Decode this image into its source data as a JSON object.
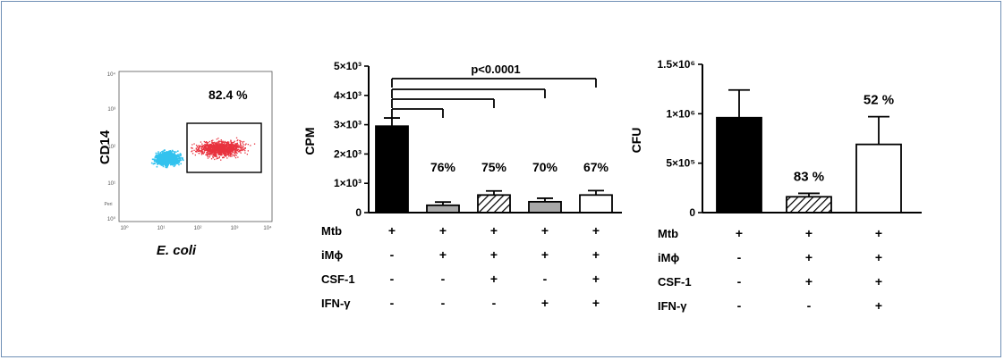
{
  "chart_data": [
    {
      "type": "scatter",
      "xlabel": "E. coli",
      "ylabel": "CD14",
      "xscale": "log",
      "yscale": "log",
      "xlim": [
        1,
        10000
      ],
      "ylim": [
        1,
        10000
      ],
      "x_tick_labels": [
        "10⁰",
        "10¹",
        "10²",
        "10³",
        "10⁴"
      ],
      "y_tick_labels": [
        "10⁰",
        "10¹",
        "10²",
        "10³",
        "10⁴"
      ],
      "side_label": "Peri",
      "gate_label": "82.4 %",
      "gate_value": 82.4,
      "series": [
        {
          "color": "#e8333f"
        },
        {
          "color": "#33c2ee"
        }
      ]
    },
    {
      "type": "bar",
      "ylabel": "CPM",
      "ylim": [
        0,
        5000
      ],
      "y_tick_labels": [
        "0",
        "1×10³",
        "2×10³",
        "3×10³",
        "4×10³",
        "5×10³"
      ],
      "values": [
        2950,
        250,
        600,
        370,
        600
      ],
      "errors": [
        280,
        110,
        140,
        120,
        150
      ],
      "fills": [
        "black",
        "#a9a9a9",
        "hatch",
        "#a9a9a9",
        "white"
      ],
      "bar_labels": [
        "",
        "76%",
        "75%",
        "70%",
        "67%"
      ],
      "significance": {
        "label": "p<0.0001",
        "brackets": [
          [
            0,
            1
          ],
          [
            0,
            2
          ],
          [
            0,
            3
          ],
          [
            0,
            4
          ]
        ]
      },
      "conditions": [
        {
          "name": "Mtb",
          "values": [
            "+",
            "+",
            "+",
            "+",
            "+"
          ]
        },
        {
          "name": "iMϕ",
          "values": [
            "-",
            "+",
            "+",
            "+",
            "+"
          ]
        },
        {
          "name": "CSF-1",
          "values": [
            "-",
            "-",
            "+",
            "-",
            "+"
          ]
        },
        {
          "name": "IFN-γ",
          "values": [
            "-",
            "-",
            "-",
            "+",
            "+"
          ]
        }
      ]
    },
    {
      "type": "bar",
      "ylabel": "CFU",
      "ylim": [
        0,
        1500000
      ],
      "y_tick_labels": [
        "0",
        "5×10⁵",
        "1×10⁶",
        "1.5×10⁶"
      ],
      "values": [
        960000,
        160000,
        690000
      ],
      "errors": [
        280000,
        35000,
        280000
      ],
      "fills": [
        "black",
        "hatch",
        "white"
      ],
      "bar_labels": [
        "",
        "83 %",
        "52 %"
      ],
      "conditions": [
        {
          "name": "Mtb",
          "values": [
            "+",
            "+",
            "+"
          ]
        },
        {
          "name": "iMϕ",
          "values": [
            "-",
            "+",
            "+"
          ]
        },
        {
          "name": "CSF-1",
          "values": [
            "-",
            "+",
            "+"
          ]
        },
        {
          "name": "IFN-γ",
          "values": [
            "-",
            "-",
            "+"
          ]
        }
      ]
    }
  ]
}
